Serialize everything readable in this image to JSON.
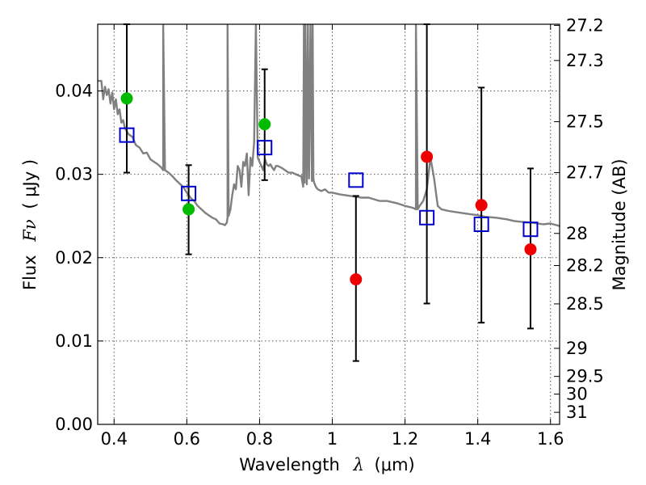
{
  "chart_data": {
    "type": "scatter",
    "xlabel": "Wavelength",
    "xlabel_symbol": "λ",
    "xlabel_unit": "(μm)",
    "ylabel": "Flux",
    "ylabel_symbol": "Fν",
    "ylabel_unit": "( μJy )",
    "y2label": "Magnitude (AB)",
    "xlim": [
      0.355,
      1.625
    ],
    "ylim": [
      0.0,
      0.048
    ],
    "x_ticks": [
      0.4,
      0.6,
      0.8,
      1.0,
      1.2,
      1.4,
      1.6
    ],
    "x_tick_labels": [
      "0.4",
      "0.6",
      "0.8",
      "1",
      "1.2",
      "1.4",
      "1.6"
    ],
    "y_ticks": [
      0.0,
      0.01,
      0.02,
      0.03,
      0.04
    ],
    "y_tick_labels": [
      "0.00",
      "0.01",
      "0.02",
      "0.03",
      "0.04"
    ],
    "mag_ticks": [
      "27.2",
      "27.3",
      "27.5",
      "27.7",
      "28",
      "28.2",
      "28.5",
      "29",
      "29.5",
      "30",
      "31"
    ],
    "grid": true,
    "colors": {
      "template": "#808080",
      "optical_points": "#00bb00",
      "nir_points": "#ee0000",
      "model_squares": "#0000cc",
      "error_bars": "#000000"
    },
    "template_spectrum": {
      "name": "model SED",
      "x": [
        0.355,
        0.365,
        0.37,
        0.375,
        0.38,
        0.385,
        0.39,
        0.395,
        0.4,
        0.405,
        0.41,
        0.415,
        0.42,
        0.425,
        0.43,
        0.44,
        0.45,
        0.46,
        0.47,
        0.48,
        0.49,
        0.5,
        0.51,
        0.52,
        0.53,
        0.535,
        0.535,
        0.54,
        0.55,
        0.56,
        0.57,
        0.58,
        0.59,
        0.6,
        0.61,
        0.62,
        0.63,
        0.64,
        0.65,
        0.66,
        0.67,
        0.68,
        0.69,
        0.7,
        0.705,
        0.71,
        0.712,
        0.712,
        0.715,
        0.72,
        0.725,
        0.73,
        0.735,
        0.74,
        0.745,
        0.75,
        0.755,
        0.76,
        0.765,
        0.77,
        0.775,
        0.78,
        0.785,
        0.79,
        0.795,
        0.8,
        0.805,
        0.81,
        0.815,
        0.82,
        0.825,
        0.83,
        0.835,
        0.84,
        0.845,
        0.85,
        0.86,
        0.87,
        0.88,
        0.89,
        0.9,
        0.91,
        0.915,
        0.92,
        0.922,
        0.924,
        0.926,
        0.93,
        0.933,
        0.936,
        0.94,
        0.944,
        0.946,
        0.948,
        0.95,
        0.955,
        0.96,
        0.97,
        0.98,
        0.99,
        1.0,
        1.02,
        1.05,
        1.08,
        1.1,
        1.13,
        1.15,
        1.18,
        1.2,
        1.22,
        1.23,
        1.23,
        1.235,
        1.24,
        1.25,
        1.26,
        1.27,
        1.28,
        1.29,
        1.3,
        1.32,
        1.35,
        1.38,
        1.4,
        1.42,
        1.45,
        1.48,
        1.5,
        1.52,
        1.55,
        1.58,
        1.6,
        1.625
      ],
      "y": [
        0.0412,
        0.0412,
        0.039,
        0.0405,
        0.0395,
        0.0402,
        0.0385,
        0.0398,
        0.0378,
        0.039,
        0.0372,
        0.0378,
        0.0362,
        0.0365,
        0.0355,
        0.0348,
        0.0345,
        0.0335,
        0.0332,
        0.0325,
        0.0326,
        0.0318,
        0.0315,
        0.0312,
        0.0308,
        0.0305,
        0.048,
        0.0305,
        0.0302,
        0.0298,
        0.0293,
        0.0289,
        0.0285,
        0.0278,
        0.0272,
        0.0268,
        0.0262,
        0.0258,
        0.0254,
        0.0251,
        0.0248,
        0.0246,
        0.0241,
        0.024,
        0.0239,
        0.0242,
        0.0248,
        0.048,
        0.025,
        0.0258,
        0.0275,
        0.0288,
        0.0282,
        0.031,
        0.0305,
        0.0285,
        0.0315,
        0.031,
        0.0325,
        0.0275,
        0.032,
        0.031,
        0.0338,
        0.048,
        0.032,
        0.0315,
        0.031,
        0.0305,
        0.0318,
        0.0312,
        0.031,
        0.0312,
        0.0308,
        0.0305,
        0.031,
        0.031,
        0.0308,
        0.0305,
        0.0302,
        0.0302,
        0.03,
        0.0298,
        0.0298,
        0.0285,
        0.048,
        0.029,
        0.048,
        0.0288,
        0.048,
        0.0295,
        0.048,
        0.0292,
        0.048,
        0.0295,
        0.029,
        0.0285,
        0.0282,
        0.028,
        0.0282,
        0.0278,
        0.0278,
        0.0276,
        0.0274,
        0.0272,
        0.0272,
        0.0268,
        0.0268,
        0.0265,
        0.0262,
        0.026,
        0.0258,
        0.048,
        0.0258,
        0.0262,
        0.0268,
        0.0282,
        0.032,
        0.0295,
        0.0262,
        0.0258,
        0.0256,
        0.0254,
        0.0252,
        0.0251,
        0.0249,
        0.0248,
        0.0246,
        0.0244,
        0.0243,
        0.0242,
        0.024,
        0.0241,
        0.0238
      ]
    },
    "series": [
      {
        "name": "optical detections",
        "marker": "circle",
        "color": "#00bb00",
        "points": [
          {
            "x": 0.435,
            "y": 0.0391,
            "yerr_low": 0.0302,
            "yerr_high": 0.048
          },
          {
            "x": 0.605,
            "y": 0.0258,
            "yerr_low": 0.0204,
            "yerr_high": 0.0311
          },
          {
            "x": 0.814,
            "y": 0.036,
            "yerr_low": 0.0293,
            "yerr_high": 0.0426
          }
        ]
      },
      {
        "name": "near-infrared detections",
        "marker": "circle",
        "color": "#ee0000",
        "points": [
          {
            "x": 1.065,
            "y": 0.0174,
            "yerr_low": 0.0076,
            "yerr_high": 0.0274
          },
          {
            "x": 1.26,
            "y": 0.0321,
            "yerr_low": 0.0145,
            "yerr_high": 0.048
          },
          {
            "x": 1.41,
            "y": 0.0263,
            "yerr_low": 0.0122,
            "yerr_high": 0.0404
          },
          {
            "x": 1.545,
            "y": 0.021,
            "yerr_low": 0.0115,
            "yerr_high": 0.0307
          }
        ]
      },
      {
        "name": "model photometry",
        "marker": "square-open",
        "color": "#0000cc",
        "points": [
          {
            "x": 0.435,
            "y": 0.0347
          },
          {
            "x": 0.605,
            "y": 0.0277
          },
          {
            "x": 0.814,
            "y": 0.0332
          },
          {
            "x": 1.065,
            "y": 0.0293
          },
          {
            "x": 1.26,
            "y": 0.0248
          },
          {
            "x": 1.41,
            "y": 0.024
          },
          {
            "x": 1.545,
            "y": 0.0234
          }
        ]
      }
    ]
  }
}
